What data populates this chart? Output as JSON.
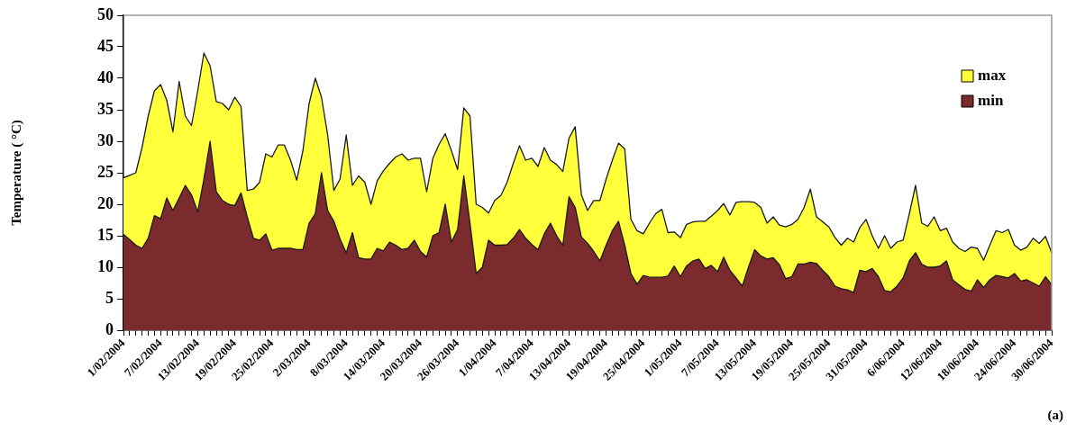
{
  "chart_data": {
    "type": "area",
    "ylabel": "Temperature ( °C)",
    "legend": "top right",
    "ylim": [
      0,
      50
    ],
    "yticks": [
      0,
      5,
      10,
      15,
      20,
      25,
      30,
      35,
      40,
      45,
      50
    ],
    "categories": [
      "1/02/2004",
      null,
      null,
      null,
      null,
      null,
      "7/02/2004",
      null,
      null,
      null,
      null,
      null,
      "13/02/2004",
      null,
      null,
      null,
      null,
      null,
      "19/02/2004",
      null,
      null,
      null,
      null,
      null,
      "25/02/2004",
      null,
      null,
      null,
      null,
      null,
      "2/03/2004",
      null,
      null,
      null,
      null,
      null,
      "8/03/2004",
      null,
      null,
      null,
      null,
      null,
      "14/03/2004",
      null,
      null,
      null,
      null,
      null,
      "20/03/2004",
      null,
      null,
      null,
      null,
      null,
      "26/03/2004",
      null,
      null,
      null,
      null,
      null,
      "1/04/2004",
      null,
      null,
      null,
      null,
      null,
      "7/04/2004",
      null,
      null,
      null,
      null,
      null,
      "13/04/2004",
      null,
      null,
      null,
      null,
      null,
      "19/04/2004",
      null,
      null,
      null,
      null,
      null,
      "25/04/2004",
      null,
      null,
      null,
      null,
      null,
      "1/05/2004",
      null,
      null,
      null,
      null,
      null,
      "7/05/2004",
      null,
      null,
      null,
      null,
      null,
      "13/05/2004",
      null,
      null,
      null,
      null,
      null,
      "19/05/2004",
      null,
      null,
      null,
      null,
      null,
      "25/05/2004",
      null,
      null,
      null,
      null,
      null,
      "31/05/2004",
      null,
      null,
      null,
      null,
      null,
      "6/06/2004",
      null,
      null,
      null,
      null,
      null,
      "12/06/2004",
      null,
      null,
      null,
      null,
      null,
      "18/06/2004",
      null,
      null,
      null,
      null,
      null,
      "24/06/2004",
      null,
      null,
      null,
      null,
      null,
      "30/06/2004"
    ],
    "series": [
      {
        "name": "max",
        "color": "#ffff3c",
        "values": [
          24.2,
          24.6,
          25,
          29,
          34,
          38,
          39,
          36.5,
          31.5,
          39.5,
          34,
          32.5,
          38,
          44,
          42,
          36.3,
          36,
          35,
          37,
          35.5,
          22.2,
          22.4,
          23.5,
          28,
          27.5,
          29.4,
          29.4,
          27,
          23.8,
          28.5,
          36,
          40,
          37,
          31,
          22.2,
          24,
          31,
          23,
          24.5,
          23.5,
          20,
          23.7,
          25.3,
          26.5,
          27.5,
          28,
          27,
          27.3,
          27.3,
          22,
          27.3,
          29.5,
          31.2,
          28.5,
          25.5,
          35.3,
          34,
          20,
          19.5,
          18.6,
          20.6,
          21.4,
          23.5,
          26.5,
          29.3,
          27,
          27.3,
          26,
          29,
          27,
          26.3,
          25.2,
          30.5,
          32.3,
          21.5,
          19,
          20.6,
          20.6,
          24,
          27,
          29.7,
          28.8,
          17.6,
          15.8,
          15.3,
          17,
          18.5,
          19.2,
          15.5,
          15.6,
          14.7,
          16.8,
          17.2,
          17.3,
          17.3,
          18.1,
          19,
          20.1,
          18.3,
          20.3,
          20.4,
          20.4,
          20.3,
          19.5,
          17,
          18,
          16.7,
          16.4,
          16.8,
          17.6,
          19.5,
          22.4,
          18,
          17.2,
          16.4,
          14.7,
          13.5,
          14.6,
          14,
          16.3,
          17.6,
          15,
          13,
          15,
          13,
          14,
          14.3,
          18.5,
          23,
          17,
          16.5,
          18,
          15.8,
          16.2,
          14,
          13,
          12.5,
          13.2,
          13,
          11.1,
          13.5,
          15.8,
          15.5,
          16,
          13.5,
          12.7,
          13.2,
          14.6,
          13.8,
          14.9,
          12.3
        ]
      },
      {
        "name": "min",
        "color": "#7b2a2e",
        "values": [
          15.2,
          14.4,
          13.5,
          13,
          14.6,
          18.2,
          17.7,
          21,
          19,
          21,
          23,
          21.5,
          18.8,
          24,
          30,
          22,
          20.6,
          20,
          19.8,
          21.8,
          18,
          14.6,
          14.3,
          15.3,
          12.7,
          13,
          13,
          13,
          12.8,
          12.8,
          17,
          18.5,
          25,
          19,
          17.3,
          14.5,
          12.3,
          15.5,
          11.5,
          11.3,
          11.3,
          13,
          12.6,
          14,
          13.5,
          12.8,
          13,
          14.3,
          12.5,
          11.6,
          15,
          15.5,
          20,
          14,
          16,
          24.5,
          17,
          9,
          10,
          14.3,
          13.5,
          13.5,
          13.6,
          14.6,
          16,
          14.6,
          13.6,
          12.8,
          15.3,
          17,
          15,
          13.5,
          21.2,
          19.5,
          14.8,
          13.8,
          12.5,
          11,
          13.5,
          15.8,
          17.3,
          13.5,
          9,
          7.3,
          8.7,
          8.4,
          8.4,
          8.4,
          8.6,
          10.2,
          8.5,
          10.2,
          11,
          11.3,
          9.8,
          10.3,
          9.3,
          11.6,
          9.5,
          8.3,
          7,
          10,
          12.8,
          11.8,
          11.3,
          11.5,
          10.4,
          8.2,
          8.5,
          10.5,
          10.5,
          10.8,
          10.6,
          9.5,
          8.5,
          7,
          6.6,
          6.4,
          6,
          9.5,
          9.3,
          9.8,
          8.5,
          6.3,
          6.1,
          7,
          8.3,
          11,
          12.3,
          10.5,
          10,
          10,
          10.2,
          11,
          8,
          7.2,
          6.5,
          6.2,
          8,
          6.8,
          8,
          8.7,
          8.5,
          8.3,
          9,
          7.8,
          8,
          7.5,
          7,
          8.5,
          7.2
        ]
      }
    ],
    "annotations": [
      "(a)"
    ]
  }
}
